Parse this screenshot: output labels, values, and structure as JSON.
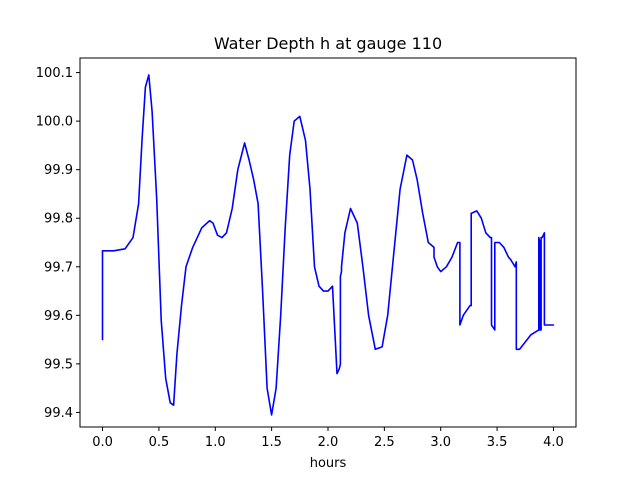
{
  "chart_data": {
    "type": "line",
    "title": "Water Depth h at gauge 110",
    "xlabel": "hours",
    "ylabel": "",
    "xlim": [
      -0.2,
      4.2
    ],
    "ylim": [
      99.37,
      100.13
    ],
    "xticks": [
      0.0,
      0.5,
      1.0,
      1.5,
      2.0,
      2.5,
      3.0,
      3.5,
      4.0
    ],
    "xtick_labels": [
      "0.0",
      "0.5",
      "1.0",
      "1.5",
      "2.0",
      "2.5",
      "3.0",
      "3.5",
      "4.0"
    ],
    "yticks": [
      99.4,
      99.5,
      99.6,
      99.7,
      99.8,
      99.9,
      100.0,
      100.1
    ],
    "ytick_labels": [
      "99.4",
      "99.5",
      "99.6",
      "99.7",
      "99.8",
      "99.9",
      "100.0",
      "100.1"
    ],
    "grid": false,
    "series": [
      {
        "color": "#0000ff",
        "x": [
          0.0,
          0.0,
          0.1,
          0.2,
          0.27,
          0.32,
          0.35,
          0.38,
          0.41,
          0.44,
          0.48,
          0.52,
          0.56,
          0.6,
          0.63,
          0.66,
          0.7,
          0.74,
          0.8,
          0.88,
          0.95,
          0.98,
          1.02,
          1.06,
          1.1,
          1.15,
          1.2,
          1.26,
          1.3,
          1.34,
          1.38,
          1.42,
          1.46,
          1.5,
          1.54,
          1.58,
          1.62,
          1.66,
          1.7,
          1.75,
          1.8,
          1.84,
          1.88,
          1.92,
          1.96,
          2.0,
          2.04,
          2.08,
          2.1,
          2.11,
          2.11,
          2.12,
          2.12,
          2.15,
          2.2,
          2.26,
          2.31,
          2.36,
          2.42,
          2.48,
          2.53,
          2.58,
          2.64,
          2.7,
          2.75,
          2.79,
          2.84,
          2.89,
          2.94,
          2.94,
          2.97,
          3.0,
          3.05,
          3.1,
          3.15,
          3.17,
          3.17,
          3.2,
          3.26,
          3.27,
          3.27,
          3.32,
          3.36,
          3.4,
          3.44,
          3.45,
          3.45,
          3.48,
          3.48,
          3.52,
          3.56,
          3.6,
          3.62,
          3.66,
          3.67,
          3.67,
          3.7,
          3.8,
          3.87,
          3.87,
          3.88,
          3.88,
          3.89,
          3.89,
          3.9,
          3.92,
          3.92,
          3.93,
          3.95,
          4.0
        ],
        "y": [
          99.55,
          99.733,
          99.733,
          99.737,
          99.76,
          99.83,
          99.96,
          100.07,
          100.095,
          100.02,
          99.84,
          99.59,
          99.47,
          99.42,
          99.415,
          99.52,
          99.62,
          99.7,
          99.74,
          99.78,
          99.795,
          99.79,
          99.765,
          99.76,
          99.77,
          99.82,
          99.9,
          99.955,
          99.92,
          99.88,
          99.83,
          99.65,
          99.45,
          99.395,
          99.45,
          99.6,
          99.78,
          99.93,
          100.0,
          100.01,
          99.96,
          99.86,
          99.7,
          99.66,
          99.65,
          99.65,
          99.66,
          99.48,
          99.49,
          99.5,
          99.68,
          99.69,
          99.7,
          99.77,
          99.82,
          99.79,
          99.7,
          99.6,
          99.53,
          99.535,
          99.6,
          99.72,
          99.86,
          99.93,
          99.92,
          99.88,
          99.81,
          99.75,
          99.74,
          99.72,
          99.7,
          99.69,
          99.7,
          99.72,
          99.75,
          99.75,
          99.58,
          99.6,
          99.62,
          99.62,
          99.81,
          99.815,
          99.8,
          99.77,
          99.76,
          99.76,
          99.58,
          99.57,
          99.75,
          99.75,
          99.74,
          99.72,
          99.715,
          99.7,
          99.71,
          99.53,
          99.53,
          99.56,
          99.57,
          99.76,
          99.75,
          99.57,
          99.57,
          99.76,
          99.76,
          99.77,
          99.58,
          99.58,
          99.58,
          99.58
        ]
      }
    ]
  }
}
